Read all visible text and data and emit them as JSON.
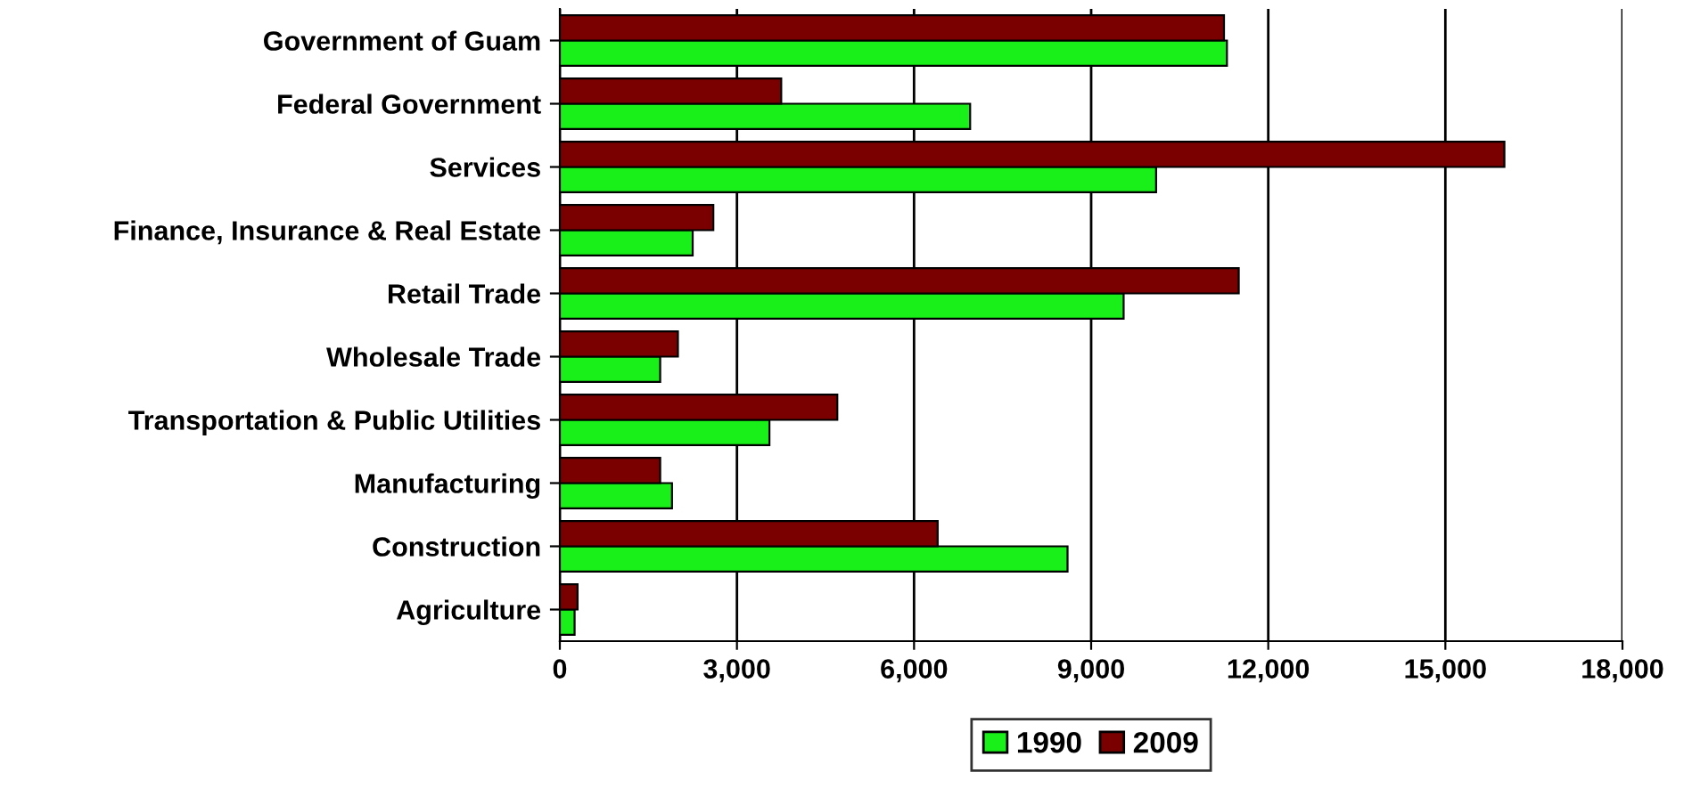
{
  "chart_data": {
    "type": "bar",
    "orientation": "horizontal",
    "categories": [
      "Government of Guam",
      "Federal Government",
      "Services",
      "Finance, Insurance & Real Estate",
      "Retail Trade",
      "Wholesale Trade",
      "Transportation & Public Utilities",
      "Manufacturing",
      "Construction",
      "Agriculture"
    ],
    "series": [
      {
        "name": "1990",
        "color": "#19f019",
        "values": [
          11300,
          6950,
          10100,
          2250,
          9550,
          1700,
          3550,
          1900,
          8600,
          250
        ]
      },
      {
        "name": "2009",
        "color": "#7a0000",
        "values": [
          11250,
          3750,
          16000,
          2600,
          11500,
          2000,
          4700,
          1700,
          6400,
          300
        ]
      }
    ],
    "xlim": [
      0,
      18000
    ],
    "xticks": [
      {
        "value": 0,
        "label": "0"
      },
      {
        "value": 3000,
        "label": "3,000"
      },
      {
        "value": 6000,
        "label": "6,000"
      },
      {
        "value": 9000,
        "label": "9,000"
      },
      {
        "value": 12000,
        "label": "12,000"
      },
      {
        "value": 15000,
        "label": "15,000"
      },
      {
        "value": 18000,
        "label": "18,000"
      }
    ],
    "grid": "x",
    "legend": "bottom"
  }
}
